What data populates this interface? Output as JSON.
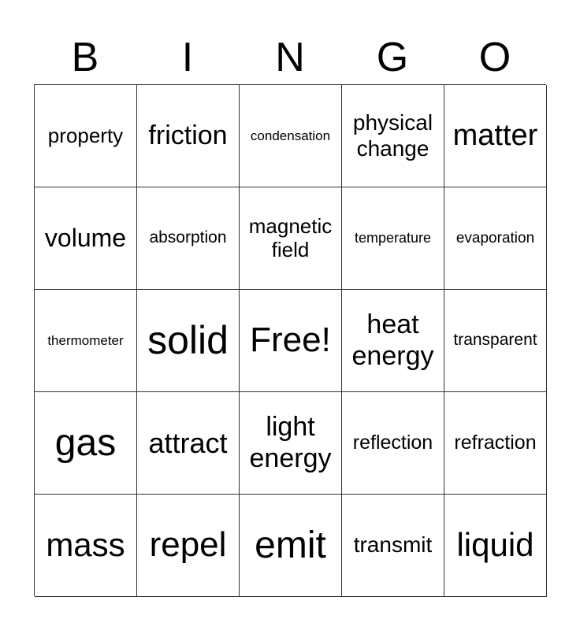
{
  "header": [
    "B",
    "I",
    "N",
    "G",
    "O"
  ],
  "cells": [
    "property",
    "friction",
    "condensation",
    "physical change",
    "matter",
    "volume",
    "absorption",
    "magnetic field",
    "temperature",
    "evaporation",
    "thermometer",
    "solid",
    "Free!",
    "heat energy",
    "transparent",
    "gas",
    "attract",
    "light energy",
    "reflection",
    "refraction",
    "mass",
    "repel",
    "emit",
    "transmit",
    "liquid"
  ]
}
